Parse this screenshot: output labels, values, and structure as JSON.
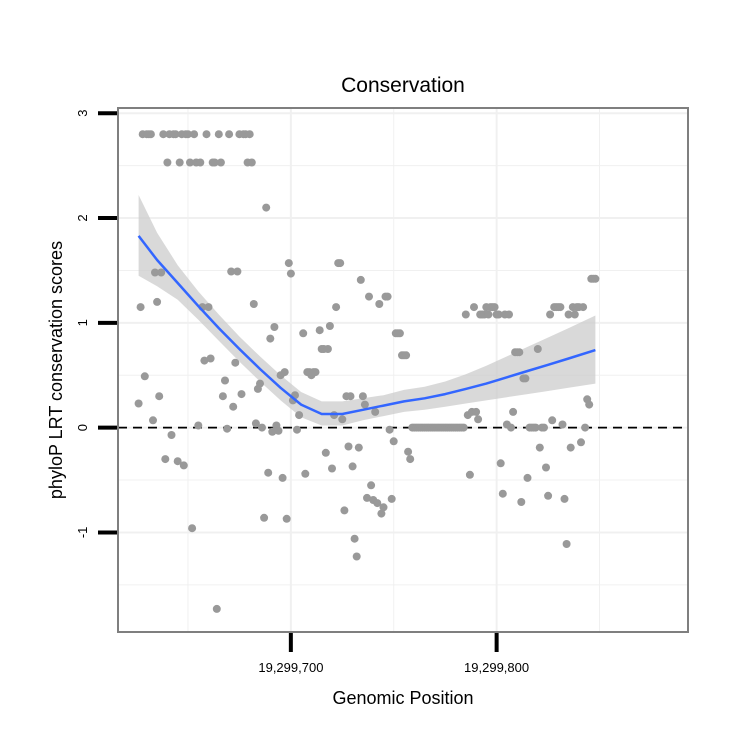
{
  "chart_data": {
    "type": "scatter",
    "title": "Conservation",
    "xlabel": "Genomic Position",
    "ylabel": "phyloP LRT conservation scores",
    "xlim": [
      19299616,
      19299893
    ],
    "ylim": [
      -1.95,
      3.05
    ],
    "x_ticks": [
      {
        "value": 19299700,
        "label": "19,299,700"
      },
      {
        "value": 19299800,
        "label": "19,299,800"
      }
    ],
    "y_ticks": [
      {
        "value": 3,
        "label": "3"
      },
      {
        "value": 2,
        "label": "2"
      },
      {
        "value": 1,
        "label": "1"
      },
      {
        "value": 0,
        "label": "0"
      },
      {
        "value": -1,
        "label": "-1"
      }
    ],
    "grid": true,
    "reference_line": {
      "y": 0,
      "style": "dashed",
      "color": "#000000"
    },
    "colors": {
      "points": "#999999",
      "smooth_line": "#3366ff",
      "confidence_band": "#cccccc",
      "panel_border": "#7f7f7f",
      "grid": "#f0f0f0"
    },
    "points": [
      [
        19299626,
        0.23
      ],
      [
        19299627,
        1.15
      ],
      [
        19299628,
        2.8
      ],
      [
        19299629,
        0.49
      ],
      [
        19299630,
        2.8
      ],
      [
        19299631,
        2.8
      ],
      [
        19299632,
        2.8
      ],
      [
        19299633,
        0.07
      ],
      [
        19299634,
        1.48
      ],
      [
        19299635,
        1.2
      ],
      [
        19299636,
        0.3
      ],
      [
        19299637,
        1.48
      ],
      [
        19299638,
        2.8
      ],
      [
        19299639,
        -0.3
      ],
      [
        19299640,
        2.53
      ],
      [
        19299641,
        2.8
      ],
      [
        19299642,
        -0.07
      ],
      [
        19299643,
        2.8
      ],
      [
        19299644,
        2.8
      ],
      [
        19299645,
        -0.32
      ],
      [
        19299646,
        2.53
      ],
      [
        19299647,
        2.8
      ],
      [
        19299648,
        -0.36
      ],
      [
        19299649,
        2.8
      ],
      [
        19299650,
        2.8
      ],
      [
        19299651,
        2.53
      ],
      [
        19299652,
        -0.96
      ],
      [
        19299653,
        2.8
      ],
      [
        19299654,
        2.53
      ],
      [
        19299655,
        0.02
      ],
      [
        19299656,
        2.53
      ],
      [
        19299657,
        1.15
      ],
      [
        19299658,
        0.64
      ],
      [
        19299659,
        2.8
      ],
      [
        19299660,
        1.15
      ],
      [
        19299661,
        0.66
      ],
      [
        19299662,
        2.53
      ],
      [
        19299663,
        2.53
      ],
      [
        19299664,
        -1.73
      ],
      [
        19299665,
        2.8
      ],
      [
        19299666,
        2.53
      ],
      [
        19299667,
        0.3
      ],
      [
        19299668,
        0.45
      ],
      [
        19299669,
        -0.01
      ],
      [
        19299670,
        2.8
      ],
      [
        19299671,
        1.49
      ],
      [
        19299672,
        0.2
      ],
      [
        19299673,
        0.62
      ],
      [
        19299674,
        1.49
      ],
      [
        19299675,
        2.8
      ],
      [
        19299676,
        0.32
      ],
      [
        19299677,
        2.8
      ],
      [
        19299678,
        2.8
      ],
      [
        19299679,
        2.53
      ],
      [
        19299680,
        2.8
      ],
      [
        19299681,
        2.53
      ],
      [
        19299682,
        1.18
      ],
      [
        19299683,
        0.04
      ],
      [
        19299684,
        0.37
      ],
      [
        19299685,
        0.42
      ],
      [
        19299686,
        0
      ],
      [
        19299687,
        -0.86
      ],
      [
        19299688,
        2.1
      ],
      [
        19299689,
        -0.43
      ],
      [
        19299690,
        0.85
      ],
      [
        19299691,
        -0.04
      ],
      [
        19299692,
        0.96
      ],
      [
        19299693,
        0.02
      ],
      [
        19299694,
        -0.03
      ],
      [
        19299695,
        0.5
      ],
      [
        19299696,
        -0.48
      ],
      [
        19299697,
        0.53
      ],
      [
        19299698,
        -0.87
      ],
      [
        19299699,
        1.57
      ],
      [
        19299700,
        1.47
      ],
      [
        19299701,
        0.26
      ],
      [
        19299702,
        0.31
      ],
      [
        19299703,
        -0.02
      ],
      [
        19299704,
        0.12
      ],
      [
        19299706,
        0.9
      ],
      [
        19299707,
        -0.44
      ],
      [
        19299708,
        0.53
      ],
      [
        19299709,
        0.53
      ],
      [
        19299710,
        0.5
      ],
      [
        19299711,
        0.53
      ],
      [
        19299712,
        0.53
      ],
      [
        19299714,
        0.93
      ],
      [
        19299715,
        0.75
      ],
      [
        19299716,
        0.75
      ],
      [
        19299717,
        -0.24
      ],
      [
        19299718,
        0.75
      ],
      [
        19299719,
        0.97
      ],
      [
        19299720,
        -0.39
      ],
      [
        19299721,
        0.12
      ],
      [
        19299722,
        1.15
      ],
      [
        19299723,
        1.57
      ],
      [
        19299724,
        1.57
      ],
      [
        19299725,
        0.08
      ],
      [
        19299726,
        -0.79
      ],
      [
        19299727,
        0.3
      ],
      [
        19299728,
        -0.18
      ],
      [
        19299729,
        0.3
      ],
      [
        19299730,
        -0.37
      ],
      [
        19299731,
        -1.06
      ],
      [
        19299732,
        -1.23
      ],
      [
        19299733,
        -0.19
      ],
      [
        19299734,
        1.41
      ],
      [
        19299735,
        0.3
      ],
      [
        19299736,
        0.22
      ],
      [
        19299737,
        -0.67
      ],
      [
        19299738,
        1.25
      ],
      [
        19299739,
        -0.55
      ],
      [
        19299740,
        -0.69
      ],
      [
        19299741,
        0.15
      ],
      [
        19299742,
        -0.72
      ],
      [
        19299743,
        1.18
      ],
      [
        19299744,
        -0.82
      ],
      [
        19299745,
        -0.76
      ],
      [
        19299746,
        1.25
      ],
      [
        19299747,
        1.25
      ],
      [
        19299748,
        -0.02
      ],
      [
        19299749,
        -0.68
      ],
      [
        19299750,
        -0.13
      ],
      [
        19299751,
        0.9
      ],
      [
        19299752,
        0.9
      ],
      [
        19299753,
        0.9
      ],
      [
        19299754,
        0.69
      ],
      [
        19299755,
        0.69
      ],
      [
        19299756,
        0.69
      ],
      [
        19299757,
        -0.23
      ],
      [
        19299758,
        -0.3
      ],
      [
        19299759,
        0
      ],
      [
        19299760,
        0
      ],
      [
        19299761,
        0
      ],
      [
        19299762,
        0
      ],
      [
        19299763,
        0
      ],
      [
        19299764,
        0
      ],
      [
        19299765,
        0
      ],
      [
        19299766,
        0
      ],
      [
        19299767,
        0
      ],
      [
        19299768,
        0
      ],
      [
        19299769,
        0
      ],
      [
        19299770,
        0
      ],
      [
        19299771,
        0
      ],
      [
        19299772,
        0
      ],
      [
        19299773,
        0
      ],
      [
        19299774,
        0
      ],
      [
        19299775,
        0
      ],
      [
        19299776,
        0
      ],
      [
        19299777,
        0
      ],
      [
        19299778,
        0
      ],
      [
        19299779,
        0
      ],
      [
        19299780,
        0
      ],
      [
        19299781,
        0
      ],
      [
        19299782,
        0
      ],
      [
        19299783,
        0
      ],
      [
        19299784,
        0
      ],
      [
        19299785,
        1.08
      ],
      [
        19299786,
        0.12
      ],
      [
        19299787,
        -0.45
      ],
      [
        19299788,
        0.15
      ],
      [
        19299789,
        1.15
      ],
      [
        19299790,
        0.15
      ],
      [
        19299791,
        0.08
      ],
      [
        19299792,
        1.08
      ],
      [
        19299793,
        1.08
      ],
      [
        19299794,
        1.08
      ],
      [
        19299795,
        1.15
      ],
      [
        19299796,
        1.08
      ],
      [
        19299797,
        1.15
      ],
      [
        19299798,
        1.15
      ],
      [
        19299799,
        1.15
      ],
      [
        19299800,
        1.08
      ],
      [
        19299801,
        1.08
      ],
      [
        19299802,
        -0.34
      ],
      [
        19299803,
        -0.63
      ],
      [
        19299804,
        1.08
      ],
      [
        19299805,
        0.03
      ],
      [
        19299806,
        1.08
      ],
      [
        19299807,
        0
      ],
      [
        19299808,
        0.15
      ],
      [
        19299809,
        0.72
      ],
      [
        19299810,
        0.72
      ],
      [
        19299811,
        0.72
      ],
      [
        19299812,
        -0.71
      ],
      [
        19299813,
        0.47
      ],
      [
        19299814,
        0.47
      ],
      [
        19299815,
        -0.48
      ],
      [
        19299816,
        0
      ],
      [
        19299817,
        0
      ],
      [
        19299818,
        0
      ],
      [
        19299819,
        0
      ],
      [
        19299820,
        0.75
      ],
      [
        19299821,
        -0.19
      ],
      [
        19299822,
        0
      ],
      [
        19299823,
        0
      ],
      [
        19299824,
        -0.38
      ],
      [
        19299825,
        -0.65
      ],
      [
        19299826,
        1.08
      ],
      [
        19299827,
        0.07
      ],
      [
        19299828,
        1.15
      ],
      [
        19299829,
        1.15
      ],
      [
        19299830,
        1.15
      ],
      [
        19299831,
        1.15
      ],
      [
        19299832,
        0.03
      ],
      [
        19299833,
        -0.68
      ],
      [
        19299834,
        -1.11
      ],
      [
        19299835,
        1.08
      ],
      [
        19299836,
        -0.19
      ],
      [
        19299837,
        1.15
      ],
      [
        19299838,
        1.08
      ],
      [
        19299839,
        1.15
      ],
      [
        19299840,
        1.15
      ],
      [
        19299841,
        -0.14
      ],
      [
        19299842,
        1.15
      ],
      [
        19299843,
        0
      ],
      [
        19299844,
        0.27
      ],
      [
        19299845,
        0.22
      ],
      [
        19299846,
        1.42
      ],
      [
        19299847,
        1.42
      ],
      [
        19299848,
        1.42
      ]
    ],
    "smooth": [
      [
        19299626,
        1.83
      ],
      [
        19299635,
        1.6
      ],
      [
        19299645,
        1.38
      ],
      [
        19299655,
        1.16
      ],
      [
        19299665,
        0.95
      ],
      [
        19299675,
        0.75
      ],
      [
        19299685,
        0.56
      ],
      [
        19299695,
        0.38
      ],
      [
        19299705,
        0.22
      ],
      [
        19299715,
        0.13
      ],
      [
        19299725,
        0.13
      ],
      [
        19299735,
        0.17
      ],
      [
        19299745,
        0.21
      ],
      [
        19299755,
        0.25
      ],
      [
        19299765,
        0.28
      ],
      [
        19299775,
        0.32
      ],
      [
        19299785,
        0.37
      ],
      [
        19299795,
        0.42
      ],
      [
        19299805,
        0.48
      ],
      [
        19299815,
        0.54
      ],
      [
        19299825,
        0.6
      ],
      [
        19299835,
        0.66
      ],
      [
        19299848,
        0.74
      ]
    ],
    "band": [
      [
        19299626,
        1.45,
        2.22
      ],
      [
        19299635,
        1.35,
        1.86
      ],
      [
        19299645,
        1.22,
        1.55
      ],
      [
        19299655,
        1.03,
        1.3
      ],
      [
        19299665,
        0.83,
        1.08
      ],
      [
        19299675,
        0.63,
        0.87
      ],
      [
        19299685,
        0.44,
        0.68
      ],
      [
        19299695,
        0.26,
        0.5
      ],
      [
        19299705,
        0.1,
        0.34
      ],
      [
        19299715,
        0.02,
        0.25
      ],
      [
        19299725,
        0.02,
        0.25
      ],
      [
        19299735,
        0.07,
        0.28
      ],
      [
        19299745,
        0.11,
        0.31
      ],
      [
        19299755,
        0.15,
        0.36
      ],
      [
        19299765,
        0.17,
        0.39
      ],
      [
        19299775,
        0.2,
        0.44
      ],
      [
        19299785,
        0.23,
        0.51
      ],
      [
        19299795,
        0.26,
        0.59
      ],
      [
        19299805,
        0.29,
        0.68
      ],
      [
        19299815,
        0.32,
        0.77
      ],
      [
        19299825,
        0.35,
        0.86
      ],
      [
        19299835,
        0.38,
        0.95
      ],
      [
        19299848,
        0.42,
        1.07
      ]
    ]
  }
}
